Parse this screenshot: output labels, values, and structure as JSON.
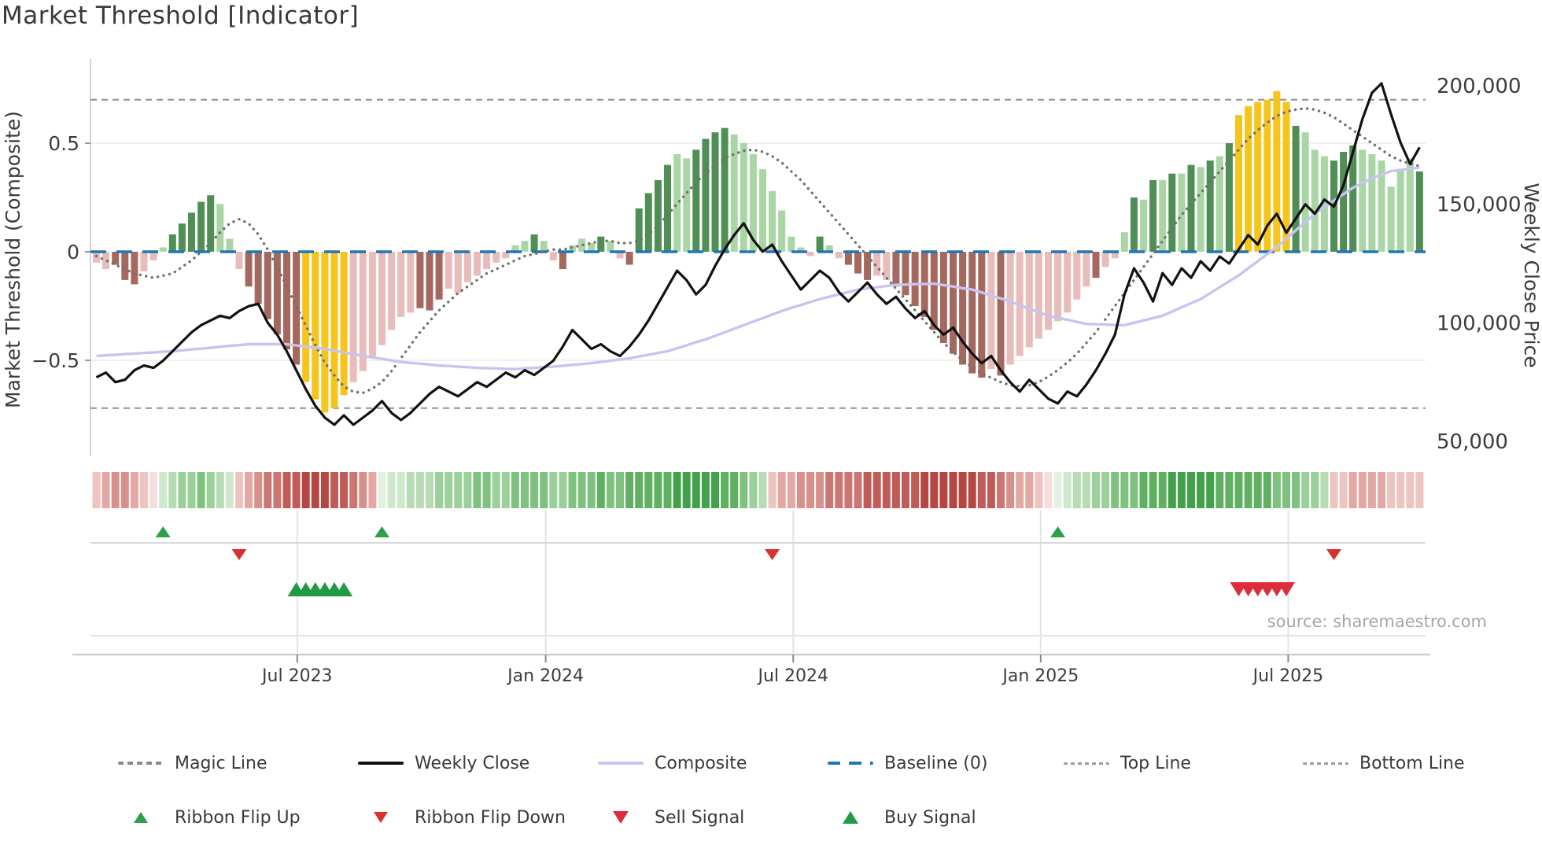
{
  "title": "Market Threshold [Indicator]",
  "source_text": "source: sharemaestro.com",
  "axes": {
    "left_label": "Market Threshold (Composite)",
    "right_label": "Weekly Close Price",
    "left_ticks": [
      "0.5",
      "0",
      "−0.5"
    ],
    "right_ticks": [
      "200,000",
      "150,000",
      "100,000",
      "50,000"
    ],
    "x_ticks": [
      "Jul 2023",
      "Jan 2024",
      "Jul 2024",
      "Jan 2025",
      "Jul 2025"
    ]
  },
  "legend": {
    "row1": [
      {
        "label": "Magic Line"
      },
      {
        "label": "Weekly Close"
      },
      {
        "label": "Composite"
      },
      {
        "label": "Baseline (0)"
      },
      {
        "label": "Top Line"
      },
      {
        "label": "Bottom Line"
      }
    ],
    "row2": [
      {
        "label": "Ribbon Flip Up"
      },
      {
        "label": "Ribbon Flip Down"
      },
      {
        "label": "Sell Signal"
      },
      {
        "label": "Buy Signal"
      }
    ]
  },
  "colors": {
    "bar_dark_green": "#4f8f55",
    "bar_light_green": "#a9d6a4",
    "bar_dark_red": "#a5685f",
    "bar_pink": "#e8bcba",
    "bar_yellow": "#f6c51c",
    "weekly_close": "#111111",
    "composite": "#c9c4ef",
    "magic_line": "#707070",
    "baseline": "#1f77b4",
    "top_bottom_line": "#909090",
    "flip_up": "#2aa04b",
    "flip_down": "#d93030",
    "buy_signal": "#219a44",
    "sell_signal": "#dd2c3c"
  },
  "chart_data": {
    "type": "combo",
    "title": "Market Threshold [Indicator]",
    "frequency": "weekly",
    "start_month": "Feb 2023",
    "end_month": "Oct 2025",
    "n_weeks": 140,
    "left_axis": {
      "label": "Market Threshold (Composite)",
      "ticks": [
        {
          "label": "0.5",
          "value": 0.5
        },
        {
          "label": "0",
          "value": 0
        },
        {
          "label": "−0.5",
          "value": -0.5
        }
      ],
      "range": [
        -0.85,
        0.9
      ]
    },
    "right_axis": {
      "label": "Weekly Close Price",
      "ticks": [
        {
          "label": "200,000",
          "value": 200000
        },
        {
          "label": "150,000",
          "value": 150000
        },
        {
          "label": "100,000",
          "value": 100000
        },
        {
          "label": "50,000",
          "value": 50000
        }
      ],
      "range": [
        40000,
        215000
      ]
    },
    "x_ticks": [
      {
        "label": "Jul 2023",
        "week": 21.1
      },
      {
        "label": "Jan 2024",
        "week": 47.2
      },
      {
        "label": "Jul 2024",
        "week": 73.2
      },
      {
        "label": "Jan 2025",
        "week": 99.2
      },
      {
        "label": "Jul 2025",
        "week": 125.2
      }
    ],
    "reference_lines": {
      "baseline": 0,
      "top_line": 0.7,
      "bottom_line": -0.72
    },
    "grid_lines_left": [
      0.5,
      -0.5
    ],
    "legend_position": "bottom",
    "threshold_bars": {
      "axis": "left",
      "values": [
        -0.05,
        -0.08,
        -0.06,
        -0.13,
        -0.15,
        -0.09,
        -0.04,
        0.02,
        0.08,
        0.13,
        0.18,
        0.23,
        0.26,
        0.22,
        0.06,
        -0.08,
        -0.16,
        -0.24,
        -0.31,
        -0.38,
        -0.45,
        -0.52,
        -0.6,
        -0.68,
        -0.74,
        -0.72,
        -0.66,
        -0.6,
        -0.55,
        -0.49,
        -0.43,
        -0.36,
        -0.3,
        -0.28,
        -0.26,
        -0.27,
        -0.22,
        -0.17,
        -0.19,
        -0.14,
        -0.11,
        -0.08,
        -0.05,
        -0.03,
        0.03,
        0.05,
        0.08,
        0.05,
        -0.04,
        -0.08,
        0.03,
        0.06,
        0.04,
        0.07,
        0.05,
        -0.03,
        -0.06,
        0.2,
        0.27,
        0.33,
        0.4,
        0.45,
        0.43,
        0.47,
        0.52,
        0.55,
        0.57,
        0.54,
        0.5,
        0.45,
        0.38,
        0.28,
        0.19,
        0.07,
        0.02,
        -0.02,
        0.07,
        0.03,
        -0.03,
        -0.06,
        -0.1,
        -0.13,
        -0.11,
        -0.13,
        -0.16,
        -0.2,
        -0.25,
        -0.3,
        -0.36,
        -0.42,
        -0.47,
        -0.52,
        -0.56,
        -0.58,
        -0.54,
        -0.57,
        -0.52,
        -0.48,
        -0.44,
        -0.4,
        -0.36,
        -0.32,
        -0.28,
        -0.22,
        -0.16,
        -0.12,
        -0.07,
        -0.03,
        0.09,
        0.25,
        0.24,
        0.33,
        0.33,
        0.36,
        0.36,
        0.4,
        0.39,
        0.42,
        0.44,
        0.5,
        0.63,
        0.67,
        0.69,
        0.7,
        0.74,
        0.69,
        0.58,
        0.55,
        0.47,
        0.44,
        0.42,
        0.46,
        0.49,
        0.47,
        0.45,
        0.42,
        0.3,
        0.38,
        0.43,
        0.37
      ],
      "color_keys": [
        "pr",
        "pr",
        "dr",
        "dr",
        "dr",
        "pr",
        "pr",
        "lg",
        "dg",
        "dg",
        "dg",
        "dg",
        "dg",
        "lg",
        "lg",
        "pr",
        "dr",
        "dr",
        "dr",
        "dr",
        "dr",
        "dr",
        "y",
        "y",
        "y",
        "y",
        "y",
        "pr",
        "pr",
        "pr",
        "pr",
        "pr",
        "pr",
        "pr",
        "dr",
        "dr",
        "dr",
        "pr",
        "pr",
        "pr",
        "pr",
        "pr",
        "pr",
        "pr",
        "lg",
        "lg",
        "dg",
        "lg",
        "pr",
        "dr",
        "lg",
        "lg",
        "lg",
        "dg",
        "lg",
        "pr",
        "dr",
        "dg",
        "dg",
        "dg",
        "dg",
        "lg",
        "lg",
        "dg",
        "dg",
        "dg",
        "dg",
        "lg",
        "lg",
        "lg",
        "lg",
        "lg",
        "lg",
        "lg",
        "lg",
        "pr",
        "dg",
        "lg",
        "pr",
        "dr",
        "dr",
        "dr",
        "pr",
        "pr",
        "dr",
        "dr",
        "dr",
        "dr",
        "dr",
        "dr",
        "dr",
        "dr",
        "dr",
        "dr",
        "pr",
        "dr",
        "pr",
        "pr",
        "pr",
        "pr",
        "pr",
        "pr",
        "pr",
        "pr",
        "pr",
        "dr",
        "pr",
        "pr",
        "lg",
        "dg",
        "lg",
        "dg",
        "lg",
        "dg",
        "lg",
        "dg",
        "lg",
        "dg",
        "lg",
        "dg",
        "y",
        "y",
        "y",
        "y",
        "y",
        "y",
        "dg",
        "lg",
        "lg",
        "lg",
        "dg",
        "dg",
        "dg",
        "lg",
        "lg",
        "lg",
        "lg",
        "lg",
        "lg",
        "dg"
      ]
    },
    "series": [
      {
        "name": "Weekly Close",
        "type": "line",
        "axis": "right",
        "color": "#111111",
        "values": [
          77000,
          79000,
          75000,
          76000,
          80000,
          82000,
          81000,
          84000,
          88000,
          92000,
          96000,
          99000,
          101000,
          103000,
          102000,
          105000,
          107000,
          108000,
          100000,
          95000,
          88000,
          80000,
          72000,
          65000,
          60000,
          57000,
          61000,
          57000,
          60000,
          63000,
          67000,
          62000,
          59000,
          62000,
          66000,
          70000,
          73000,
          71000,
          69000,
          72000,
          75000,
          73000,
          76000,
          79000,
          77000,
          80000,
          78000,
          81000,
          84000,
          90000,
          97000,
          93000,
          89000,
          91000,
          88000,
          86000,
          90000,
          95000,
          101000,
          108000,
          115000,
          122000,
          118000,
          112000,
          116000,
          124000,
          131000,
          137000,
          142000,
          135000,
          130000,
          133000,
          126000,
          120000,
          114000,
          118000,
          122000,
          119000,
          113000,
          109000,
          113000,
          117000,
          112000,
          108000,
          111000,
          106000,
          102000,
          105000,
          99000,
          95000,
          98000,
          92000,
          87000,
          83000,
          86000,
          80000,
          75000,
          71000,
          76000,
          72000,
          68000,
          66000,
          71000,
          69000,
          74000,
          80000,
          87000,
          95000,
          112000,
          123000,
          117000,
          109000,
          121000,
          116000,
          123000,
          119000,
          126000,
          122000,
          128000,
          125000,
          131000,
          137000,
          133000,
          141000,
          146000,
          138000,
          144000,
          150000,
          146000,
          152000,
          149000,
          158000,
          172000,
          186000,
          197000,
          201000,
          188000,
          176000,
          167000,
          174000
        ]
      },
      {
        "name": "Composite",
        "type": "line",
        "axis": "right",
        "color": "#c9c4ef",
        "values": [
          86000,
          86300,
          86500,
          86800,
          87000,
          87300,
          87500,
          87800,
          88000,
          88400,
          88800,
          89100,
          89500,
          89900,
          90300,
          90600,
          91000,
          91000,
          91000,
          91000,
          91000,
          90500,
          90000,
          89500,
          89000,
          88300,
          87500,
          86800,
          86000,
          85400,
          84800,
          84100,
          83500,
          83100,
          82800,
          82400,
          82000,
          81800,
          81500,
          81300,
          81000,
          80900,
          80800,
          80600,
          80500,
          80800,
          81000,
          81300,
          81500,
          81900,
          82300,
          82600,
          83000,
          83500,
          84000,
          84500,
          85000,
          85800,
          86500,
          87300,
          88000,
          89300,
          90500,
          91800,
          93000,
          94500,
          96000,
          97500,
          99000,
          100500,
          102000,
          103500,
          105000,
          106300,
          107500,
          108800,
          110000,
          111000,
          112000,
          113000,
          114000,
          114500,
          115000,
          115500,
          116000,
          116100,
          116300,
          116400,
          116500,
          115900,
          115300,
          114600,
          114000,
          112800,
          111500,
          110300,
          109000,
          107500,
          106000,
          104500,
          103000,
          102100,
          101300,
          100400,
          99500,
          99400,
          99300,
          99100,
          99000,
          100000,
          101000,
          102000,
          103000,
          104800,
          106500,
          108300,
          110000,
          112500,
          115000,
          117500,
          120000,
          123000,
          126000,
          129000,
          132000,
          135500,
          139000,
          142500,
          146000,
          148800,
          151500,
          154300,
          157000,
          159000,
          161000,
          162500,
          164000,
          164500,
          165000,
          165500
        ]
      },
      {
        "name": "Magic Line",
        "type": "line",
        "axis": "left",
        "style": "dotted",
        "color": "#707070",
        "values": [
          -0.02,
          -0.04,
          -0.06,
          -0.08,
          -0.1,
          -0.11,
          -0.12,
          -0.11,
          -0.1,
          -0.07,
          -0.04,
          0.0,
          0.04,
          0.09,
          0.13,
          0.15,
          0.13,
          0.08,
          0.01,
          -0.07,
          -0.16,
          -0.25,
          -0.34,
          -0.43,
          -0.51,
          -0.57,
          -0.62,
          -0.645,
          -0.65,
          -0.63,
          -0.6,
          -0.55,
          -0.49,
          -0.43,
          -0.37,
          -0.32,
          -0.27,
          -0.23,
          -0.19,
          -0.16,
          -0.13,
          -0.1,
          -0.08,
          -0.06,
          -0.04,
          -0.02,
          -0.01,
          0.0,
          0.01,
          0.01,
          0.02,
          0.03,
          0.04,
          0.05,
          0.05,
          0.04,
          0.04,
          0.05,
          0.08,
          0.12,
          0.17,
          0.22,
          0.27,
          0.32,
          0.36,
          0.4,
          0.43,
          0.45,
          0.465,
          0.47,
          0.46,
          0.44,
          0.41,
          0.37,
          0.33,
          0.28,
          0.23,
          0.18,
          0.13,
          0.08,
          0.03,
          -0.02,
          -0.07,
          -0.12,
          -0.17,
          -0.22,
          -0.27,
          -0.32,
          -0.37,
          -0.42,
          -0.46,
          -0.5,
          -0.53,
          -0.56,
          -0.58,
          -0.6,
          -0.615,
          -0.62,
          -0.615,
          -0.6,
          -0.575,
          -0.545,
          -0.51,
          -0.47,
          -0.42,
          -0.37,
          -0.31,
          -0.25,
          -0.19,
          -0.13,
          -0.07,
          -0.01,
          0.05,
          0.11,
          0.17,
          0.22,
          0.27,
          0.32,
          0.37,
          0.42,
          0.47,
          0.52,
          0.56,
          0.595,
          0.625,
          0.645,
          0.655,
          0.66,
          0.655,
          0.64,
          0.62,
          0.59,
          0.56,
          0.53,
          0.5,
          0.47,
          0.44,
          0.42,
          0.405,
          0.395
        ]
      }
    ],
    "ribbon_colors": [
      "#eec4c2",
      "#e3a7a4",
      "#d8908c",
      "#d8908c",
      "#e3a7a4",
      "#eec4c2",
      "#f5dedd",
      "#cfe8cd",
      "#b7dcb5",
      "#9cd09a",
      "#9cd09a",
      "#7fc17e",
      "#9cd09a",
      "#b7dcb5",
      "#cfe8cd",
      "#eec4c2",
      "#e3a7a4",
      "#d8908c",
      "#cb7672",
      "#cb7672",
      "#c05b57",
      "#c05b57",
      "#b54743",
      "#b54743",
      "#b54743",
      "#c05b57",
      "#c05b57",
      "#cb7672",
      "#d8908c",
      "#e3a7a4",
      "#e3f1e2",
      "#cfe8cd",
      "#cfe8cd",
      "#b7dcb5",
      "#b7dcb5",
      "#b7dcb5",
      "#9cd09a",
      "#9cd09a",
      "#9cd09a",
      "#9cd09a",
      "#7fc17e",
      "#7fc17e",
      "#9cd09a",
      "#9cd09a",
      "#7fc17e",
      "#7fc17e",
      "#7fc17e",
      "#7fc17e",
      "#9cd09a",
      "#9cd09a",
      "#7fc17e",
      "#7fc17e",
      "#7fc17e",
      "#5fb061",
      "#7fc17e",
      "#7fc17e",
      "#5fb061",
      "#5fb061",
      "#5fb061",
      "#5fb061",
      "#5fb061",
      "#43a14b",
      "#43a14b",
      "#43a14b",
      "#43a14b",
      "#43a14b",
      "#5fb061",
      "#5fb061",
      "#7fc17e",
      "#9cd09a",
      "#b7dcb5",
      "#eec4c2",
      "#e3a7a4",
      "#e3a7a4",
      "#d8908c",
      "#d8908c",
      "#d8908c",
      "#cb7672",
      "#cb7672",
      "#cb7672",
      "#cb7672",
      "#c05b57",
      "#c05b57",
      "#c05b57",
      "#c05b57",
      "#c05b57",
      "#c05b57",
      "#b54743",
      "#b54743",
      "#b54743",
      "#b54743",
      "#b54743",
      "#b54743",
      "#c05b57",
      "#c05b57",
      "#cb7672",
      "#d8908c",
      "#e3a7a4",
      "#e3a7a4",
      "#eec4c2",
      "#f5dedd",
      "#e3f1e2",
      "#cfe8cd",
      "#b7dcb5",
      "#b7dcb5",
      "#9cd09a",
      "#9cd09a",
      "#7fc17e",
      "#7fc17e",
      "#7fc17e",
      "#5fb061",
      "#5fb061",
      "#5fb061",
      "#43a14b",
      "#43a14b",
      "#43a14b",
      "#43a14b",
      "#43a14b",
      "#5fb061",
      "#5fb061",
      "#5fb061",
      "#5fb061",
      "#5fb061",
      "#5fb061",
      "#7fc17e",
      "#7fc17e",
      "#7fc17e",
      "#9cd09a",
      "#9cd09a",
      "#b7dcb5",
      "#eec4c2",
      "#eec4c2",
      "#e3a7a4",
      "#e3a7a4",
      "#e3a7a4",
      "#e3a7a4",
      "#eec4c2",
      "#eec4c2",
      "#eec4c2",
      "#eec4c2"
    ],
    "signals": {
      "ribbon_flip_up_weeks": [
        7,
        30,
        101
      ],
      "ribbon_flip_down_weeks": [
        15,
        71,
        130
      ],
      "buy_signal_weeks": [
        21,
        22,
        23,
        24,
        25,
        26
      ],
      "sell_signal_weeks": [
        120,
        121,
        122,
        123,
        124,
        125
      ]
    }
  }
}
